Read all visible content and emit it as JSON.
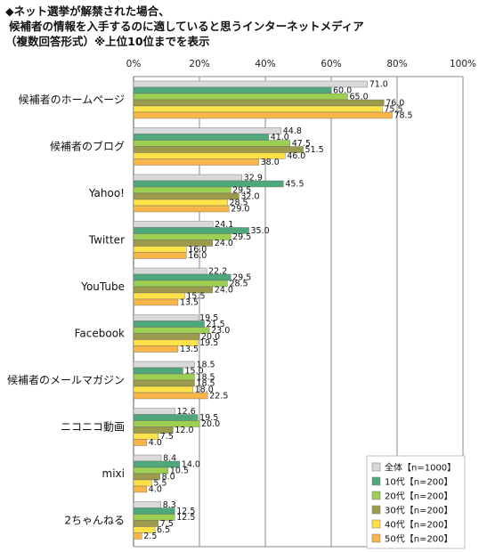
{
  "title": {
    "line1": "◆ネット選挙が解禁された場合、",
    "line2": "候補者の情報を入手するのに適していると思うインターネットメディア",
    "line3": "（複数回答形式）※上位10位までを表示"
  },
  "chart_data": {
    "type": "bar",
    "orientation": "horizontal",
    "xlim": [
      0,
      100
    ],
    "xticks": [
      "0%",
      "20%",
      "40%",
      "60%",
      "80%",
      "100%"
    ],
    "grid": true,
    "legend_position": "bottom-right",
    "categories": [
      "候補者のホームページ",
      "候補者のブログ",
      "Yahoo!",
      "Twitter",
      "YouTube",
      "Facebook",
      "候補者のメールマガジン",
      "ニコニコ動画",
      "mixi",
      "2ちゃんねる"
    ],
    "series": [
      {
        "name": "全体【n=1000】",
        "color": "#d9d9d9",
        "values": [
          71.0,
          44.8,
          32.9,
          24.1,
          22.2,
          19.5,
          18.5,
          12.6,
          8.4,
          8.3
        ],
        "labels": [
          "71.0",
          "44.8",
          "32.9",
          "24.1",
          "22.2",
          "19.5",
          "18.5",
          "12.6",
          "8.4",
          "8.3"
        ]
      },
      {
        "name": "10代【n=200】",
        "color": "#4fa77c",
        "values": [
          60.0,
          41.0,
          45.5,
          35.0,
          29.5,
          21.5,
          15.0,
          19.5,
          14.0,
          12.5
        ],
        "labels": [
          "60.0",
          "41.0",
          "45.5",
          "35.0",
          "29.5",
          "21.5",
          "15.0",
          "19.5",
          "14.0",
          "12.5"
        ]
      },
      {
        "name": "20代【n=200】",
        "color": "#9ccf52",
        "values": [
          65.0,
          47.5,
          29.5,
          29.5,
          28.5,
          23.0,
          18.5,
          20.0,
          10.5,
          12.5
        ],
        "labels": [
          "65.0",
          "47.5",
          "29.5",
          "29.5",
          "28.5",
          "23.0",
          "18.5",
          "20.0",
          "10.5",
          "12.5"
        ]
      },
      {
        "name": "30代【n=200】",
        "color": "#9c9a4c",
        "values": [
          76.0,
          51.5,
          32.0,
          24.0,
          24.0,
          20.0,
          18.5,
          12.0,
          8.0,
          7.5
        ],
        "labels": [
          "76.0",
          "51.5",
          "32.0",
          "24.0",
          "24.0",
          "20.0",
          "18.5",
          "12.0",
          "8.0",
          "7.5"
        ]
      },
      {
        "name": "40代【n=200】",
        "color": "#ffe14a",
        "values": [
          75.5,
          46.0,
          28.5,
          16.0,
          15.5,
          19.5,
          18.0,
          7.5,
          5.5,
          6.5
        ],
        "labels": [
          "75.5",
          "46.0",
          "28.5",
          "16.0",
          "15.5",
          "19.5",
          "18.0",
          "7.5",
          "5.5",
          "6.5"
        ]
      },
      {
        "name": "50代【n=200】",
        "color": "#f7b54a",
        "values": [
          78.5,
          38.0,
          29.0,
          16.0,
          13.5,
          13.5,
          22.5,
          4.0,
          4.0,
          2.5
        ],
        "labels": [
          "78.5",
          "38.0",
          "29.0",
          "16.0",
          "13.5",
          "13.5",
          "22.5",
          "4.0",
          "4.0",
          "2.5"
        ]
      }
    ]
  }
}
